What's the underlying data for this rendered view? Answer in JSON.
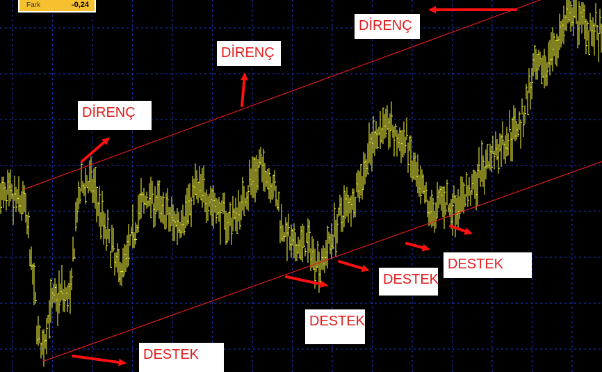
{
  "info_box": {
    "label": "Fark",
    "value": "-0,24"
  },
  "colors": {
    "background": "#000000",
    "bars": "#ffff40",
    "grid": "#1a2fa8",
    "trendline": "#e01b1b",
    "annotation_text": "#e21b1b",
    "info_box": "#f5c12e"
  },
  "chart_data": {
    "type": "bar",
    "subtype": "ohlc",
    "title": "",
    "xlabel": "",
    "ylabel": "",
    "grid": true,
    "price_path_x": [
      0,
      10,
      17,
      22,
      27,
      30,
      35,
      43,
      50,
      55,
      60,
      67,
      75,
      85,
      92,
      100,
      107,
      115,
      125,
      132,
      140,
      148,
      155,
      165,
      172,
      180,
      187,
      195,
      202,
      210,
      220,
      230,
      240,
      247,
      255,
      262,
      270,
      280,
      287,
      292,
      297,
      305,
      312,
      317,
      322,
      330,
      340,
      350,
      360,
      375,
      383,
      390,
      400,
      410,
      420,
      433
    ],
    "price_path_y": [
      255,
      245,
      245,
      155,
      55,
      25,
      90,
      115,
      105,
      235,
      275,
      265,
      205,
      145,
      175,
      235,
      255,
      235,
      215,
      225,
      265,
      255,
      235,
      215,
      235,
      275,
      295,
      275,
      215,
      175,
      185,
      155,
      205,
      235,
      255,
      295,
      345,
      355,
      325,
      335,
      285,
      245,
      225,
      255,
      235,
      245,
      265,
      305,
      325,
      365,
      425,
      435,
      475,
      515,
      505,
      475
    ],
    "trendlines": [
      {
        "role": "resistance",
        "x": [
          17,
          433
        ],
        "y": [
          263,
          568
        ]
      },
      {
        "role": "support",
        "x": [
          30,
          433
        ],
        "y": [
          15,
          303
        ]
      }
    ]
  },
  "annotations": [
    {
      "text": "DİRENÇ",
      "kind": "resistance"
    },
    {
      "text": "DİRENÇ",
      "kind": "resistance"
    },
    {
      "text": "DİRENÇ",
      "kind": "resistance"
    },
    {
      "text": "DESTEK",
      "kind": "support"
    },
    {
      "text": "DESTEK",
      "kind": "support"
    },
    {
      "text": "DESTEK",
      "kind": "support"
    },
    {
      "text": "DESTEK",
      "kind": "support"
    }
  ]
}
